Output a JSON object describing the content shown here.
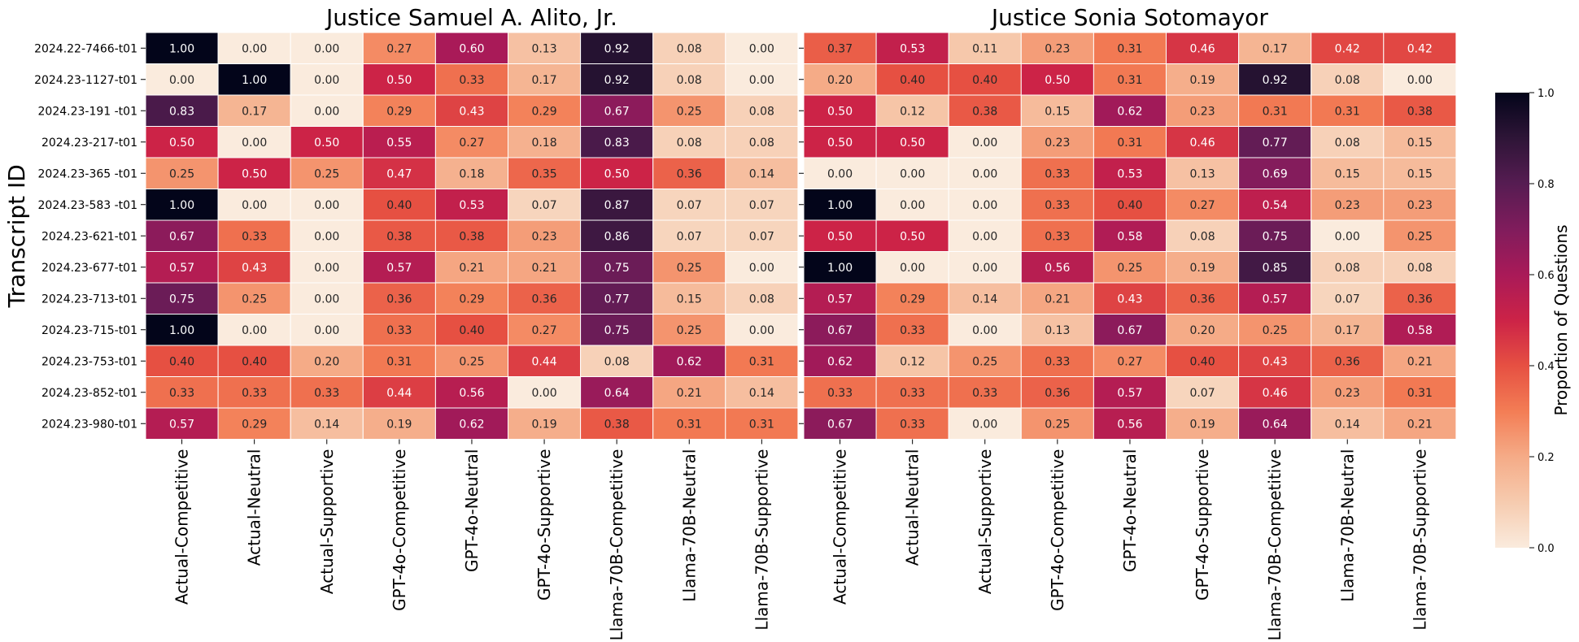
{
  "chart_data": {
    "type": "heatmap",
    "ylabel": "Transcript ID",
    "colorbar": {
      "label": "Proportion of Questions",
      "range": [
        0.0,
        1.0
      ],
      "ticks": [
        "0.0",
        "0.2",
        "0.4",
        "0.6",
        "0.8",
        "1.0"
      ]
    },
    "rows": [
      "2024.22-7466-t01",
      "2024.23-1127-t01",
      "2024.23-191 -t01",
      "2024.23-217-t01",
      "2024.23-365 -t01",
      "2024.23-583 -t01",
      "2024.23-621-t01",
      "2024.23-677-t01",
      "2024.23-713-t01",
      "2024.23-715-t01",
      "2024.23-753-t01",
      "2024.23-852-t01",
      "2024.23-980-t01"
    ],
    "columns": [
      "Actual-Competitive",
      "Actual-Neutral",
      "Actual-Supportive",
      "GPT-4o-Competitive",
      "GPT-4o-Neutral",
      "GPT-4o-Supportive",
      "Llama-70B-Competitive",
      "Llama-70B-Neutral",
      "Llama-70B-Supportive"
    ],
    "panels": [
      {
        "title": "Justice Samuel A. Alito, Jr.",
        "values": [
          [
            1.0,
            0.0,
            0.0,
            0.27,
            0.6,
            0.13,
            0.92,
            0.08,
            0.0
          ],
          [
            0.0,
            1.0,
            0.0,
            0.5,
            0.33,
            0.17,
            0.92,
            0.08,
            0.0
          ],
          [
            0.83,
            0.17,
            0.0,
            0.29,
            0.43,
            0.29,
            0.67,
            0.25,
            0.08
          ],
          [
            0.5,
            0.0,
            0.5,
            0.55,
            0.27,
            0.18,
            0.83,
            0.08,
            0.08
          ],
          [
            0.25,
            0.5,
            0.25,
            0.47,
            0.18,
            0.35,
            0.5,
            0.36,
            0.14
          ],
          [
            1.0,
            0.0,
            0.0,
            0.4,
            0.53,
            0.07,
            0.87,
            0.07,
            0.07
          ],
          [
            0.67,
            0.33,
            0.0,
            0.38,
            0.38,
            0.23,
            0.86,
            0.07,
            0.07
          ],
          [
            0.57,
            0.43,
            0.0,
            0.57,
            0.21,
            0.21,
            0.75,
            0.25,
            0.0
          ],
          [
            0.75,
            0.25,
            0.0,
            0.36,
            0.29,
            0.36,
            0.77,
            0.15,
            0.08
          ],
          [
            1.0,
            0.0,
            0.0,
            0.33,
            0.4,
            0.27,
            0.75,
            0.25,
            0.0
          ],
          [
            0.4,
            0.4,
            0.2,
            0.31,
            0.25,
            0.44,
            0.08,
            0.62,
            0.31
          ],
          [
            0.33,
            0.33,
            0.33,
            0.44,
            0.56,
            0.0,
            0.64,
            0.21,
            0.14
          ],
          [
            0.57,
            0.29,
            0.14,
            0.19,
            0.62,
            0.19,
            0.38,
            0.31,
            0.31
          ]
        ]
      },
      {
        "title": "Justice Sonia Sotomayor",
        "values": [
          [
            0.37,
            0.53,
            0.11,
            0.23,
            0.31,
            0.46,
            0.17,
            0.42,
            0.42
          ],
          [
            0.2,
            0.4,
            0.4,
            0.5,
            0.31,
            0.19,
            0.92,
            0.08,
            0.0
          ],
          [
            0.5,
            0.12,
            0.38,
            0.15,
            0.62,
            0.23,
            0.31,
            0.31,
            0.38
          ],
          [
            0.5,
            0.5,
            0.0,
            0.23,
            0.31,
            0.46,
            0.77,
            0.08,
            0.15
          ],
          [
            0.0,
            0.0,
            0.0,
            0.33,
            0.53,
            0.13,
            0.69,
            0.15,
            0.15
          ],
          [
            1.0,
            0.0,
            0.0,
            0.33,
            0.4,
            0.27,
            0.54,
            0.23,
            0.23
          ],
          [
            0.5,
            0.5,
            0.0,
            0.33,
            0.58,
            0.08,
            0.75,
            0.0,
            0.25
          ],
          [
            1.0,
            0.0,
            0.0,
            0.56,
            0.25,
            0.19,
            0.85,
            0.08,
            0.08
          ],
          [
            0.57,
            0.29,
            0.14,
            0.21,
            0.43,
            0.36,
            0.57,
            0.07,
            0.36
          ],
          [
            0.67,
            0.33,
            0.0,
            0.13,
            0.67,
            0.2,
            0.25,
            0.17,
            0.58
          ],
          [
            0.62,
            0.12,
            0.25,
            0.33,
            0.27,
            0.4,
            0.43,
            0.36,
            0.21
          ],
          [
            0.33,
            0.33,
            0.33,
            0.36,
            0.57,
            0.07,
            0.46,
            0.23,
            0.31
          ],
          [
            0.67,
            0.33,
            0.0,
            0.25,
            0.56,
            0.19,
            0.64,
            0.14,
            0.21
          ]
        ]
      }
    ]
  }
}
